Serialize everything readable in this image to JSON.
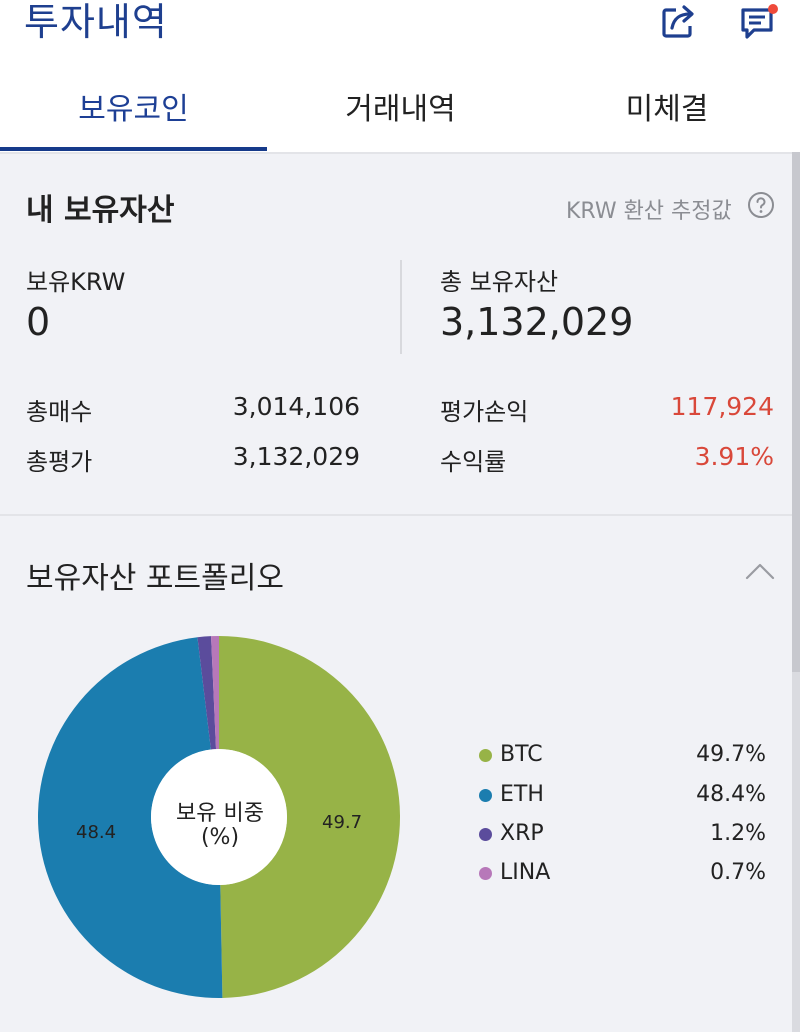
{
  "header": {
    "title": "투자내역"
  },
  "tabs": [
    {
      "label": "보유코인",
      "active": true
    },
    {
      "label": "거래내역",
      "active": false
    },
    {
      "label": "미체결",
      "active": false
    }
  ],
  "assets": {
    "title": "내 보유자산",
    "krw_note": "KRW 환산 추정값",
    "krw_label": "보유KRW",
    "krw_value": "0",
    "total_label": "총 보유자산",
    "total_value": "3,132,029",
    "rows": [
      {
        "label": "총매수",
        "value": "3,014,106"
      },
      {
        "label": "총평가",
        "value": "3,132,029"
      },
      {
        "label": "평가손익",
        "value": "117,924"
      },
      {
        "label": "수익률",
        "value": "3.91%"
      }
    ]
  },
  "portfolio": {
    "title": "보유자산 포트폴리오",
    "center_line1": "보유 비중",
    "center_line2": "(%)",
    "slice_labels": {
      "btc": "49.7",
      "eth": "48.4"
    },
    "legend": [
      {
        "name": "BTC",
        "pct": "49.7%"
      },
      {
        "name": "ETH",
        "pct": "48.4%"
      },
      {
        "name": "XRP",
        "pct": "1.2%"
      },
      {
        "name": "LINA",
        "pct": "0.7%"
      }
    ]
  },
  "colors": {
    "accent": "#1d3f95",
    "profit_red": "#d9483a",
    "btc": "#97b347",
    "eth": "#1b7daf",
    "xrp": "#5b4c9c",
    "lina": "#b778b9"
  },
  "chart_data": {
    "type": "pie",
    "categories": [
      "BTC",
      "ETH",
      "XRP",
      "LINA"
    ],
    "values": [
      49.7,
      48.4,
      1.2,
      0.7
    ],
    "title": "보유 비중 (%)"
  }
}
